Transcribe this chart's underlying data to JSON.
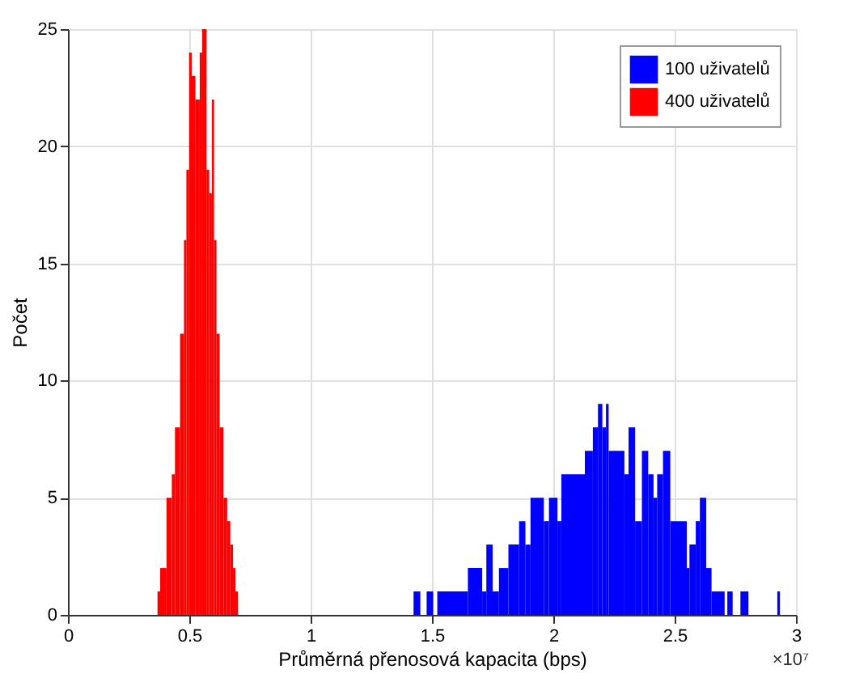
{
  "chart_data": {
    "type": "histogram",
    "xlabel": "Průměrná přenosová kapacita (bps)",
    "ylabel": "Počet",
    "annotations": [
      "×10⁷"
    ],
    "bins": [
      0.369,
      0.38,
      0.406,
      0.428,
      0.441,
      0.462,
      0.478,
      0.488,
      0.499,
      0.51,
      0.525,
      0.543,
      0.553,
      0.571,
      0.582,
      0.593,
      0.602,
      0.612,
      0.625,
      0.641,
      0.656,
      0.669,
      0.68,
      0.69,
      0.701,
      1.424,
      1.452,
      1.478,
      1.505,
      1.522,
      1.648,
      1.707,
      1.724,
      1.75,
      1.776,
      1.815,
      1.859,
      1.885,
      1.906,
      1.961,
      1.982,
      2.017,
      2.033,
      2.13,
      2.163,
      2.184,
      2.202,
      2.217,
      2.228,
      2.293,
      2.31,
      2.337,
      2.365,
      2.391,
      2.413,
      2.428,
      2.452,
      2.482,
      2.55,
      2.561,
      2.587,
      2.604,
      2.63,
      2.652,
      2.706,
      2.717,
      2.739,
      2.771,
      2.804,
      2.923,
      2.934
    ],
    "series": [
      {
        "name": "100 uživatelů",
        "color": "#0000ff",
        "values": [
          0,
          0,
          0,
          0,
          0,
          0,
          0,
          0,
          0,
          0,
          0,
          0,
          0,
          0,
          0,
          0,
          0,
          0,
          0,
          0,
          0,
          0,
          0,
          0,
          0,
          1,
          0,
          1,
          0,
          1,
          2,
          1,
          3,
          1,
          2,
          3,
          4,
          3,
          5,
          4,
          5,
          4,
          6,
          7,
          8,
          9,
          8,
          9,
          7,
          6,
          8,
          4,
          7,
          6,
          5,
          6,
          7,
          4,
          2,
          3,
          4,
          5,
          2,
          1,
          0,
          1,
          0,
          1,
          0,
          1
        ]
      },
      {
        "name": "400 uživatelů",
        "color": "#ff0000",
        "values": [
          1,
          2,
          5,
          6,
          8,
          12,
          16,
          19,
          24,
          23,
          22,
          24,
          25,
          19,
          18,
          22,
          16,
          12,
          8,
          5,
          4,
          3,
          2,
          1,
          0,
          0,
          0,
          0,
          0,
          0,
          0,
          0,
          0,
          0,
          0,
          0,
          0,
          0,
          0,
          0,
          0,
          0,
          0,
          0,
          0,
          0,
          0,
          0,
          0,
          0,
          0,
          0,
          0,
          0,
          0,
          0,
          0,
          0,
          0,
          0,
          0,
          0,
          0,
          0,
          0,
          0,
          0,
          0,
          0,
          0
        ]
      }
    ],
    "xlim": [
      0,
      3
    ],
    "xticks": [
      0,
      0.5,
      1,
      1.5,
      2,
      2.5,
      3
    ],
    "ylim": [
      0,
      25
    ],
    "yticks": [
      0,
      5,
      10,
      15,
      20,
      25
    ],
    "grid": true,
    "legend": "top right"
  }
}
